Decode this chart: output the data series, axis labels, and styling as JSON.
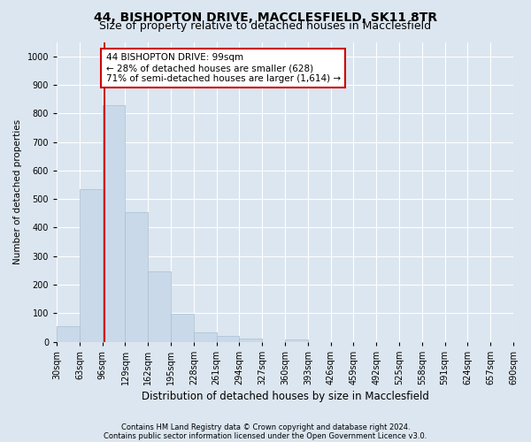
{
  "title": "44, BISHOPTON DRIVE, MACCLESFIELD, SK11 8TR",
  "subtitle": "Size of property relative to detached houses in Macclesfield",
  "xlabel": "Distribution of detached houses by size in Macclesfield",
  "ylabel": "Number of detached properties",
  "footnote1": "Contains HM Land Registry data © Crown copyright and database right 2024.",
  "footnote2": "Contains public sector information licensed under the Open Government Licence v3.0.",
  "bin_edges": [
    30,
    63,
    96,
    129,
    162,
    195,
    228,
    261,
    294,
    327,
    360,
    393,
    426,
    459,
    492,
    525,
    558,
    591,
    624,
    657,
    690
  ],
  "bar_heights": [
    53,
    535,
    830,
    455,
    245,
    97,
    33,
    20,
    10,
    0,
    8,
    0,
    0,
    0,
    0,
    0,
    0,
    0,
    0,
    0
  ],
  "bar_color": "#c9d9ea",
  "bar_edge_color": "#a8bece",
  "bar_edge_width": 0.5,
  "property_size": 99,
  "red_line_color": "#cc0000",
  "annotation_line1": "44 BISHOPTON DRIVE: 99sqm",
  "annotation_line2": "← 28% of detached houses are smaller (628)",
  "annotation_line3": "71% of semi-detached houses are larger (1,614) →",
  "annotation_box_edge_color": "#cc0000",
  "annotation_box_face_color": "#ffffff",
  "ylim": [
    0,
    1050
  ],
  "yticks": [
    0,
    100,
    200,
    300,
    400,
    500,
    600,
    700,
    800,
    900,
    1000
  ],
  "background_color": "#dce6f0",
  "grid_color": "#ffffff",
  "title_fontsize": 10,
  "subtitle_fontsize": 9,
  "xlabel_fontsize": 8.5,
  "ylabel_fontsize": 7.5,
  "tick_fontsize": 7,
  "annotation_fontsize": 7.5,
  "footnote_fontsize": 6
}
